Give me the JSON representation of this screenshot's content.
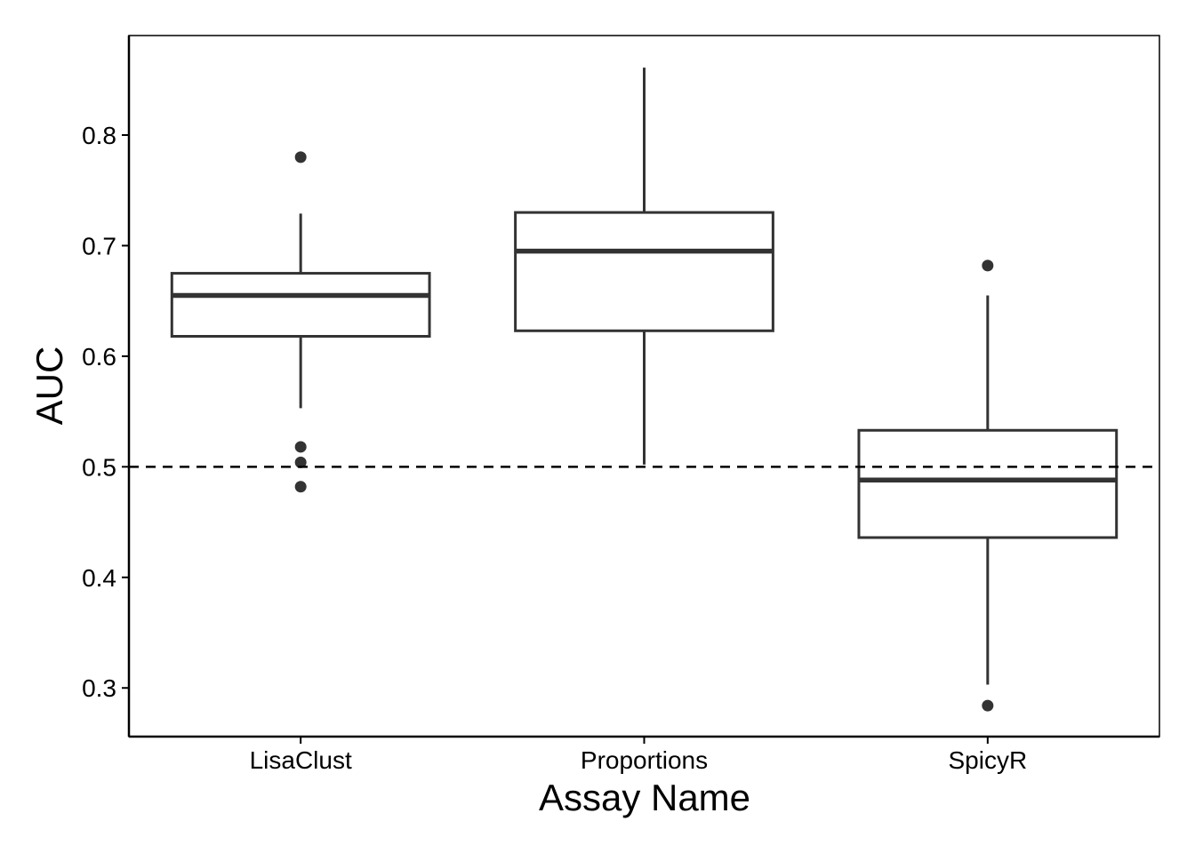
{
  "chart_data": {
    "type": "boxplot",
    "xlabel": "Assay Name",
    "ylabel": "AUC",
    "categories": [
      "LisaClust",
      "Proportions",
      "SpicyR"
    ],
    "ylim": [
      0.256,
      0.89
    ],
    "yticks": [
      0.3,
      0.4,
      0.5,
      0.6,
      0.7,
      0.8
    ],
    "ytick_labels": [
      "0.3",
      "0.4",
      "0.5",
      "0.6",
      "0.7",
      "0.8"
    ],
    "grid": false,
    "reference_line": {
      "y": 0.5,
      "style": "dashed"
    },
    "boxes": [
      {
        "category": "LisaClust",
        "lower_whisker": 0.553,
        "q1": 0.618,
        "median": 0.655,
        "q3": 0.675,
        "upper_whisker": 0.729,
        "outliers": [
          0.78,
          0.518,
          0.504,
          0.482
        ]
      },
      {
        "category": "Proportions",
        "lower_whisker": 0.502,
        "q1": 0.623,
        "median": 0.695,
        "q3": 0.73,
        "upper_whisker": 0.861,
        "outliers": []
      },
      {
        "category": "SpicyR",
        "lower_whisker": 0.303,
        "q1": 0.436,
        "median": 0.488,
        "q3": 0.533,
        "upper_whisker": 0.655,
        "outliers": [
          0.682,
          0.284
        ]
      }
    ],
    "colors": {
      "box_stroke": "#333333",
      "box_fill": "#ffffff",
      "outlier": "#333333",
      "axis": "#000000",
      "reference_line": "#000000"
    }
  }
}
